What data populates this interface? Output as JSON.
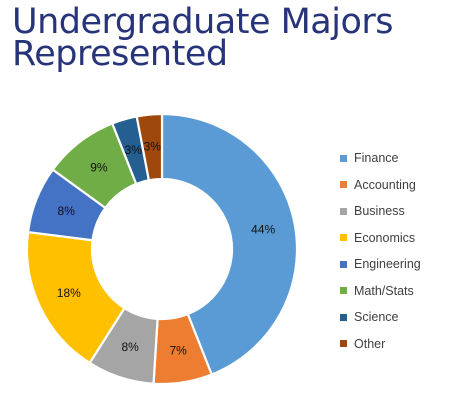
{
  "title_lines": [
    "Undergraduate Majors",
    "Represented"
  ],
  "chart_data": {
    "type": "pie",
    "variant": "donut",
    "title": "Undergraduate Majors Represented",
    "categories": [
      "Finance",
      "Accounting",
      "Business",
      "Economics",
      "Engineering",
      "Math/Stats",
      "Science",
      "Other"
    ],
    "values": [
      44,
      7,
      8,
      18,
      8,
      9,
      3,
      3
    ],
    "labels": [
      "44%",
      "7%",
      "8%",
      "18%",
      "8%",
      "9%",
      "3%",
      "3%"
    ],
    "colors": [
      "#5b9bd5",
      "#ed7d31",
      "#a5a5a5",
      "#ffc000",
      "#4472c4",
      "#70ad47",
      "#255e91",
      "#9e480e"
    ],
    "legend_position": "right"
  }
}
